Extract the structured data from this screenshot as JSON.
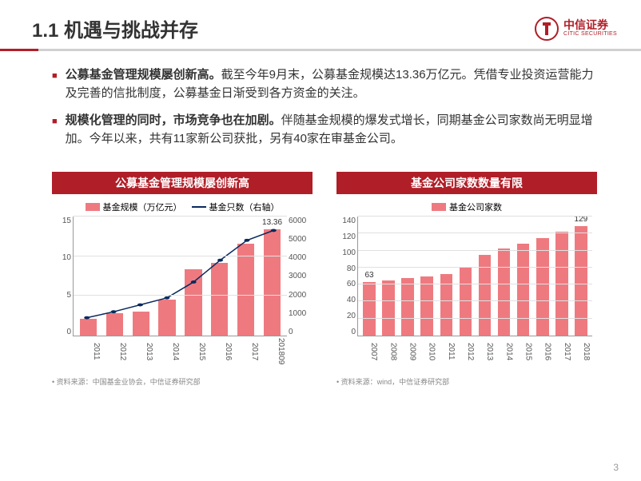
{
  "header": {
    "title": "1.1 机遇与挑战并存",
    "logo_ch": "中信证券",
    "logo_en": "CITIC SECURITIES"
  },
  "bullets": [
    {
      "bold": "公募基金管理规模屡创新高。",
      "rest": "截至今年9月末，公募基金规模达13.36万亿元。凭借专业投资运营能力及完善的信批制度，公募基金日渐受到各方资金的关注。"
    },
    {
      "bold": "规模化管理的同时，市场竞争也在加剧。",
      "rest": "伴随基金规模的爆发式增长，同期基金公司家数尚无明显增加。今年以来，共有11家新公司获批，另有40家在审基金公司。"
    }
  ],
  "chart_left": {
    "title": "公募基金管理规模屡创新高",
    "legend_bar": "基金规模（万亿元）",
    "legend_line": "基金只数（右轴）",
    "categories": [
      "2011",
      "2012",
      "2013",
      "2014",
      "2015",
      "2016",
      "2017",
      "201809"
    ],
    "bar_values": [
      2.1,
      2.8,
      3.0,
      4.5,
      8.4,
      9.2,
      11.6,
      13.36
    ],
    "line_values": [
      900,
      1200,
      1550,
      1900,
      2700,
      3800,
      4800,
      5300
    ],
    "ylim_left": [
      0,
      15
    ],
    "ytick_left": [
      0,
      5,
      10,
      15
    ],
    "ylim_right": [
      0,
      6000
    ],
    "ytick_right": [
      0,
      1000,
      2000,
      3000,
      4000,
      5000,
      6000
    ],
    "bar_color": "#ee7a80",
    "line_color": "#0a2a5e",
    "annotated_last": "13.36",
    "source": "资料来源：中国基金业协会，中信证券研究部"
  },
  "chart_right": {
    "title": "基金公司家数数量有限",
    "legend_bar": "基金公司家数",
    "categories": [
      "2007",
      "2008",
      "2009",
      "2010",
      "2011",
      "2012",
      "2013",
      "2014",
      "2015",
      "2016",
      "2017",
      "2018"
    ],
    "bar_values": [
      63,
      65,
      68,
      70,
      72,
      80,
      95,
      102,
      108,
      115,
      122,
      129
    ],
    "ylim": [
      0,
      140
    ],
    "ytick": [
      0,
      20,
      40,
      60,
      80,
      100,
      120,
      140
    ],
    "bar_color": "#ee7a80",
    "first_label": "63",
    "last_label": "129",
    "source": "资料来源：wind，中信证券研究部"
  },
  "page_number": "3"
}
